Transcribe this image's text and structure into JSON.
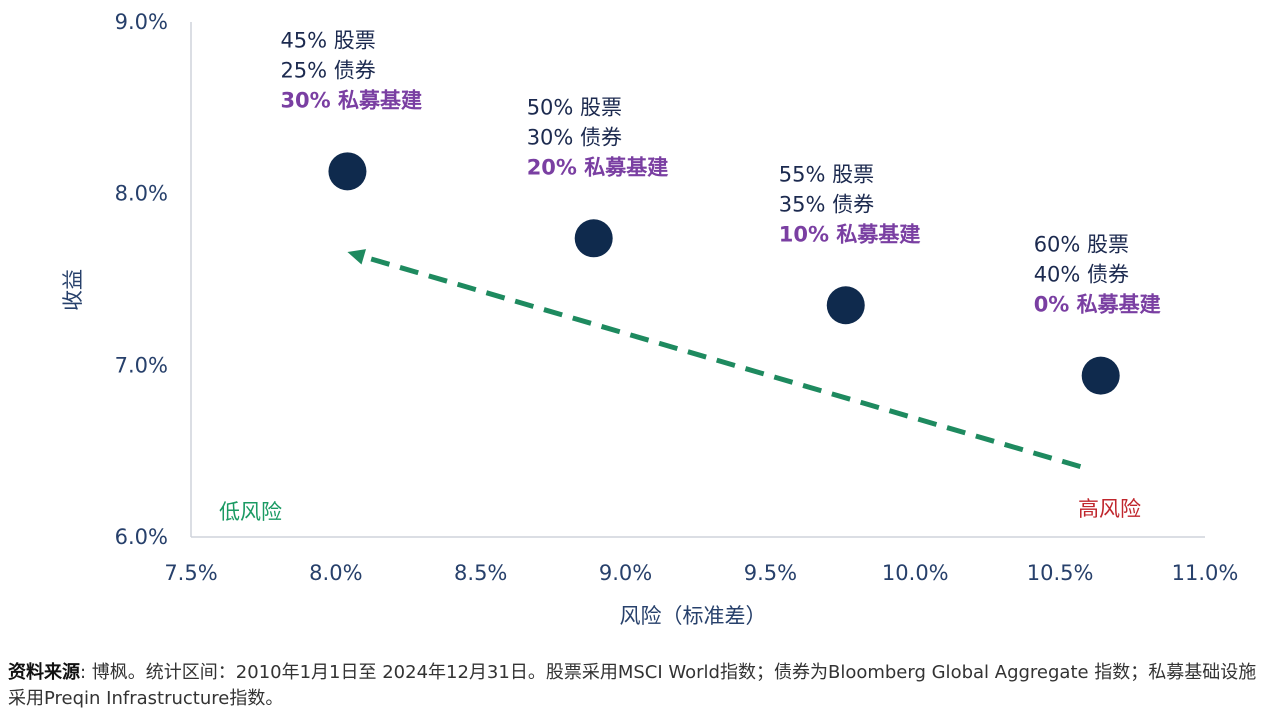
{
  "chart_data": {
    "type": "scatter",
    "xlabel": "风险（标准差）",
    "ylabel": "收益",
    "xlim": [
      7.5,
      11.0
    ],
    "ylim": [
      6.0,
      9.0
    ],
    "x_ticks": [
      "7.5%",
      "8.0%",
      "8.5%",
      "9.0%",
      "9.5%",
      "10.0%",
      "10.5%",
      "11.0%"
    ],
    "y_ticks": [
      "6.0%",
      "7.0%",
      "8.0%",
      "9.0%"
    ],
    "grid": false,
    "marker_color": "#0f2a4d",
    "arrow_color": "#1e8a5f",
    "points": [
      {
        "x": 8.04,
        "y": 8.13,
        "labels": [
          "45% 股票",
          "25% 债券",
          "30% 私募基建"
        ]
      },
      {
        "x": 8.89,
        "y": 7.74,
        "labels": [
          "50% 股票",
          "30% 债券",
          "20% 私募基建"
        ]
      },
      {
        "x": 9.76,
        "y": 7.35,
        "labels": [
          "55% 股票",
          "35% 债券",
          "10% 私募基建"
        ]
      },
      {
        "x": 10.64,
        "y": 6.94,
        "labels": [
          "60% 股票",
          "40% 债券",
          "0% 私募基建"
        ]
      }
    ],
    "arrow": {
      "from": [
        10.57,
        6.41
      ],
      "to": [
        8.04,
        7.66
      ]
    },
    "zone_labels": {
      "low": "低风险",
      "high": "高风险"
    }
  },
  "source": {
    "label": "资料来源",
    "text": ": 博枫。统计区间：2010年1月1日至 2024年12月31日。股票采用MSCI World指数；债券为Bloomberg Global Aggregate 指数；私募基础设施采用Preqin Infrastructure指数。"
  }
}
